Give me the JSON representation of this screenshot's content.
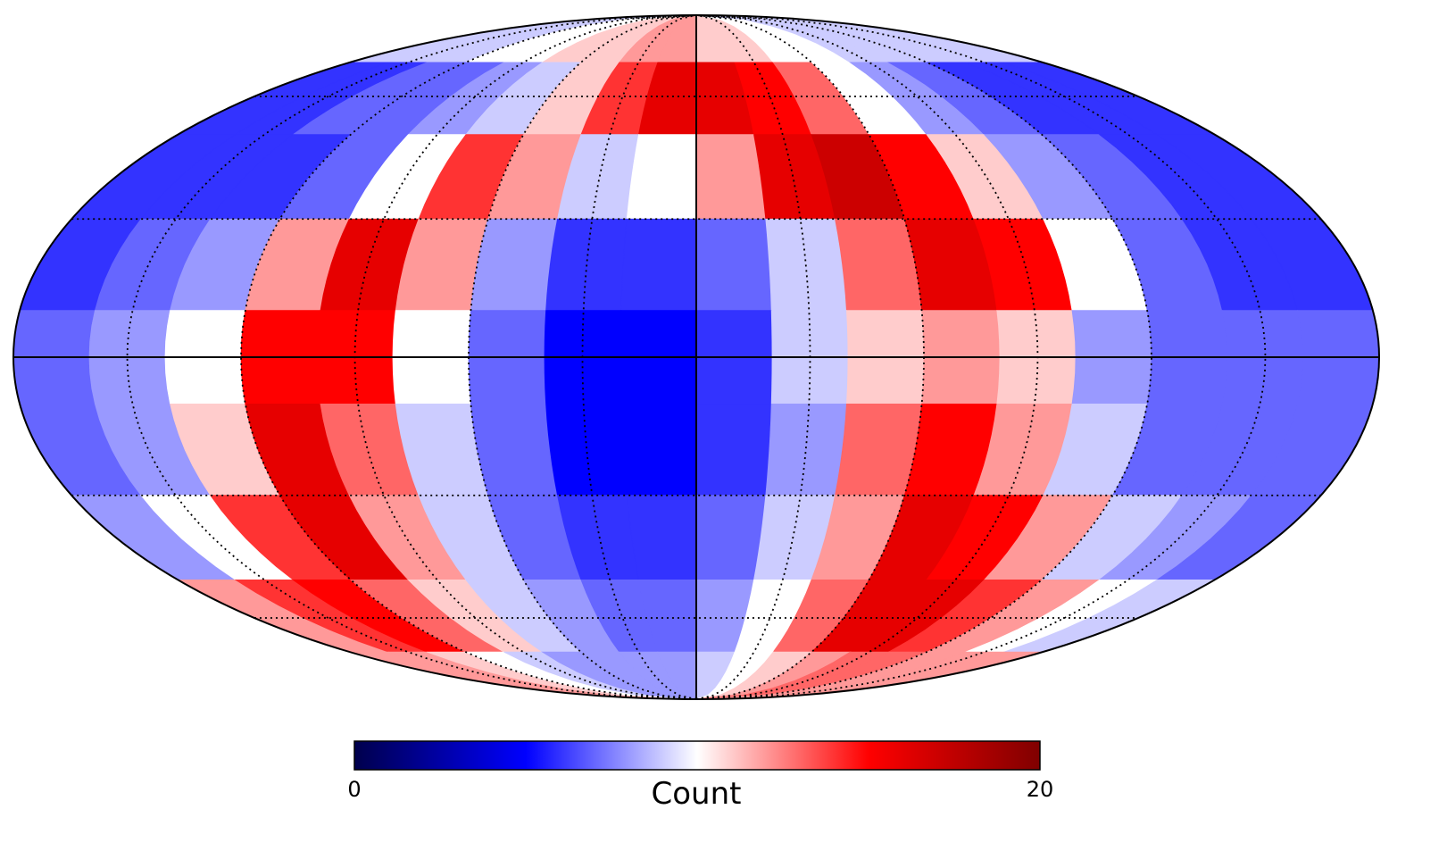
{
  "chart_data": {
    "type": "mollweide",
    "values": [
      [
        9,
        9,
        9,
        10,
        10,
        11,
        11,
        12,
        12,
        11,
        11,
        10,
        10,
        9,
        9,
        9,
        9,
        9
      ],
      [
        6,
        6,
        7,
        7,
        8,
        9,
        11,
        14,
        16,
        16,
        15,
        13,
        10,
        8,
        7,
        6,
        6,
        6
      ],
      [
        6,
        6,
        6,
        7,
        10,
        14,
        12,
        9,
        10,
        12,
        16,
        17,
        15,
        11,
        8,
        7,
        6,
        6
      ],
      [
        6,
        7,
        8,
        12,
        16,
        12,
        8,
        6,
        6,
        7,
        9,
        13,
        16,
        15,
        10,
        7,
        6,
        6
      ],
      [
        7,
        8,
        10,
        15,
        15,
        10,
        7,
        5,
        5,
        6,
        9,
        11,
        12,
        11,
        8,
        7,
        7,
        7
      ],
      [
        7,
        8,
        11,
        16,
        13,
        9,
        7,
        5,
        5,
        6,
        8,
        13,
        15,
        12,
        9,
        7,
        7,
        7
      ],
      [
        8,
        10,
        14,
        16,
        12,
        9,
        7,
        6,
        6,
        7,
        9,
        12,
        16,
        15,
        12,
        9,
        8,
        7
      ],
      [
        12,
        14,
        15,
        13,
        11,
        9,
        8,
        7,
        7,
        8,
        10,
        13,
        16,
        16,
        14,
        12,
        10,
        9
      ],
      [
        12,
        12,
        11,
        10,
        9,
        8,
        8,
        8,
        8,
        9,
        10,
        11,
        12,
        13,
        13,
        12,
        12,
        12
      ]
    ],
    "colormap": [
      "#00004c",
      "#0000ff",
      "#ffffff",
      "#ff0000",
      "#800000"
    ],
    "colorbar": {
      "label": "Count",
      "lim": [
        0,
        20
      ],
      "ticks": [
        0,
        20
      ]
    },
    "grid": true
  }
}
